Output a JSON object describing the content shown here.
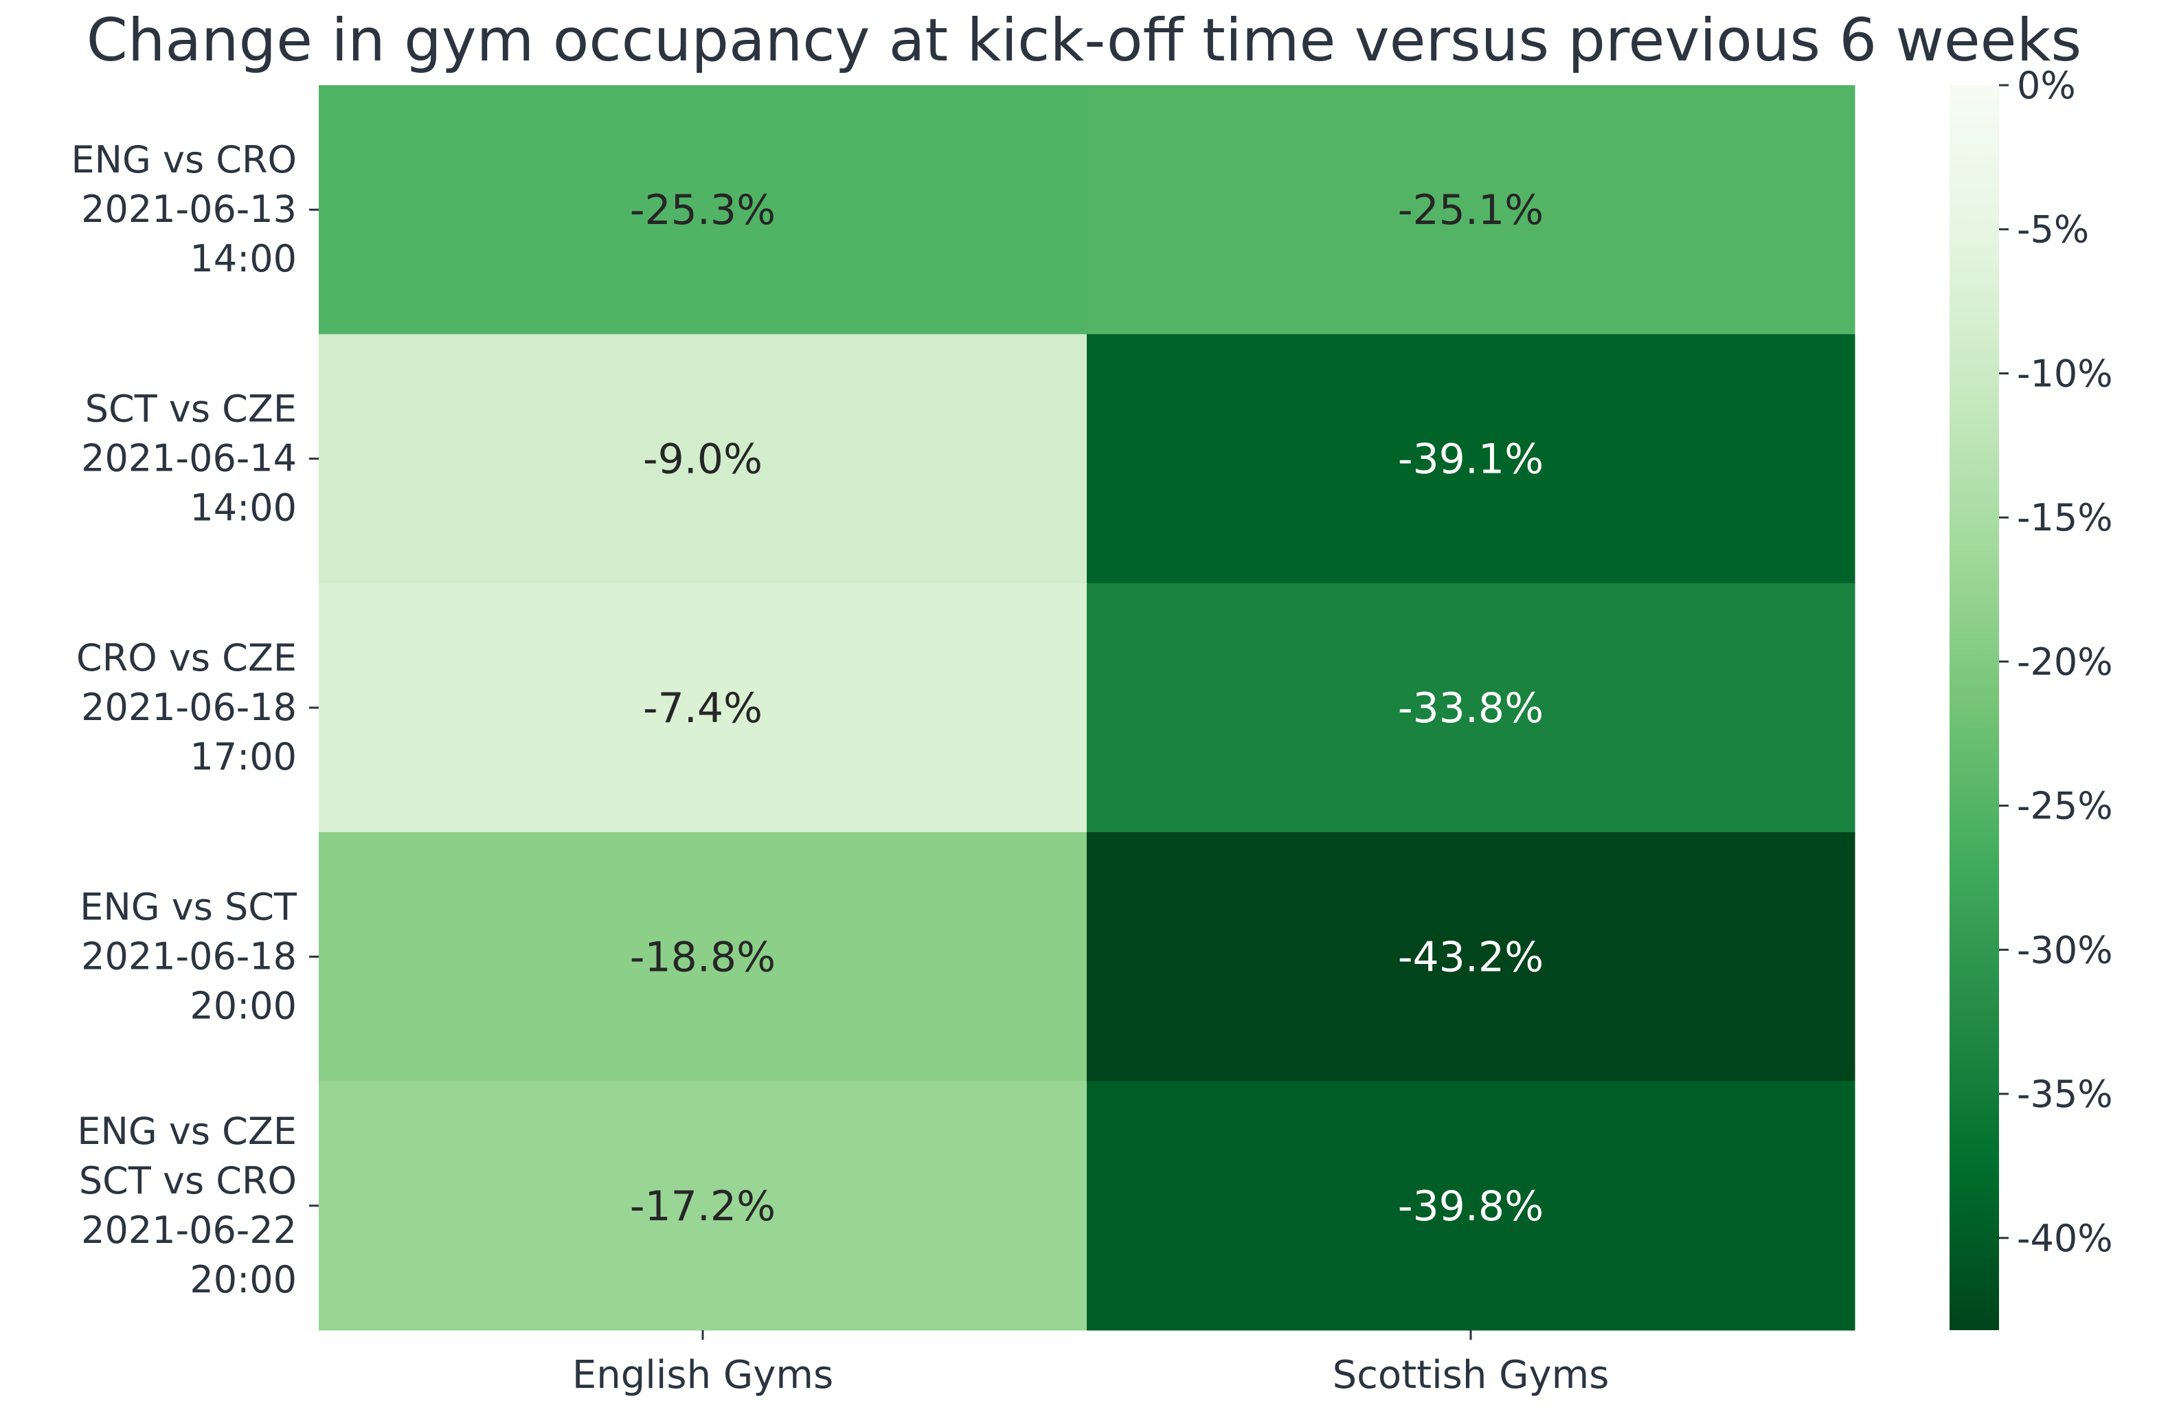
{
  "chart_data": {
    "type": "heatmap",
    "title": "Change in gym occupancy at kick-off time versus previous 6 weeks",
    "xlabel": "",
    "ylabel": "",
    "columns": [
      "English Gyms",
      "Scottish Gyms"
    ],
    "rows": [
      {
        "label_lines": [
          "ENG vs CRO",
          "2021-06-13",
          "14:00"
        ],
        "values": [
          -25.3,
          -25.1
        ],
        "labels": [
          "-25.3%",
          "-25.1%"
        ]
      },
      {
        "label_lines": [
          "SCT vs CZE",
          "2021-06-14",
          "14:00"
        ],
        "values": [
          -9.0,
          -39.1
        ],
        "labels": [
          "-9.0%",
          "-39.1%"
        ]
      },
      {
        "label_lines": [
          "CRO vs CZE",
          "2021-06-18",
          "17:00"
        ],
        "values": [
          -7.4,
          -33.8
        ],
        "labels": [
          "-7.4%",
          "-33.8%"
        ]
      },
      {
        "label_lines": [
          "ENG vs SCT",
          "2021-06-18",
          "20:00"
        ],
        "values": [
          -18.8,
          -43.2
        ],
        "labels": [
          "-18.8%",
          "-43.2%"
        ]
      },
      {
        "label_lines": [
          "ENG vs CZE",
          "SCT vs CRO",
          "2021-06-22",
          "20:00"
        ],
        "values": [
          -17.2,
          -39.8
        ],
        "labels": [
          "-17.2%",
          "-39.8%"
        ]
      }
    ],
    "colorbar": {
      "range": [
        -43.2,
        0
      ],
      "ticks": [
        0,
        -5,
        -10,
        -15,
        -20,
        -25,
        -30,
        -35,
        -40
      ],
      "tick_labels": [
        "0%",
        "-5%",
        "-10%",
        "-15%",
        "-20%",
        "-25%",
        "-30%",
        "-35%",
        "-40%"
      ],
      "colormap": "Greens"
    },
    "colors": {
      "text": "#2b343f",
      "cell_text_light": "#ffffff",
      "cell_text_dark": "#262626",
      "axis": "#2b343f"
    }
  }
}
